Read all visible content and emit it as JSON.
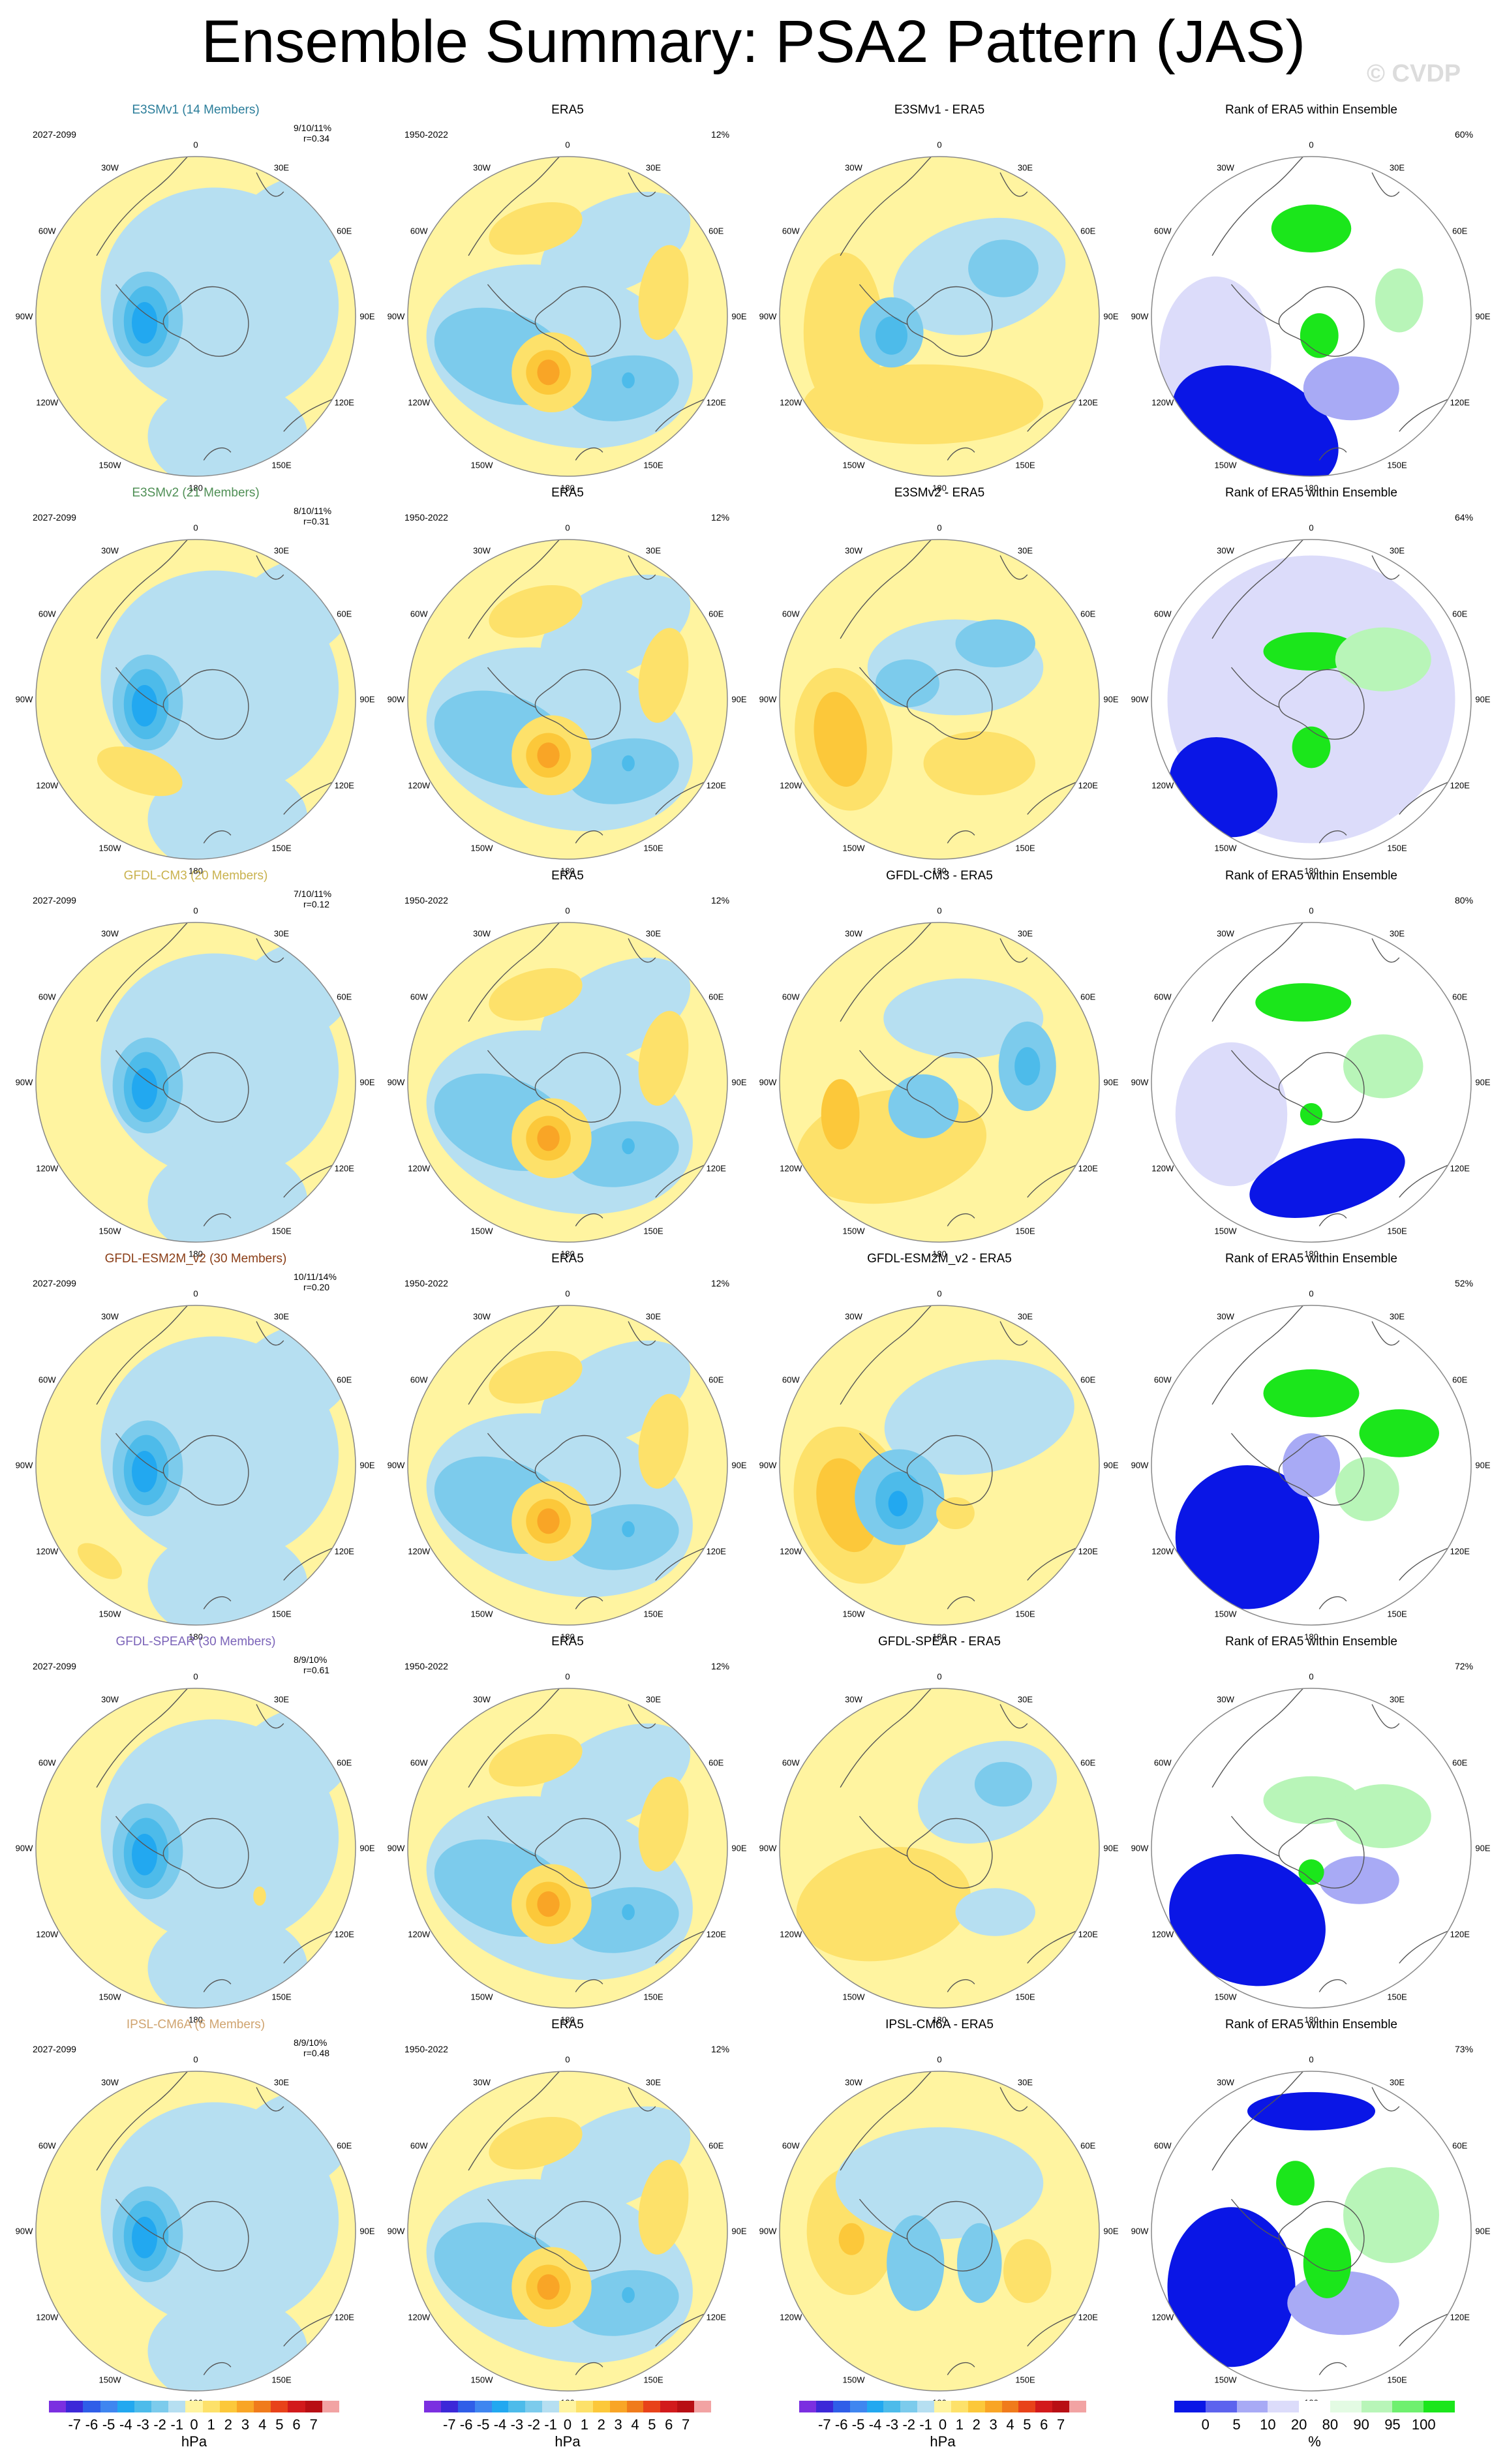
{
  "title": "Ensemble Summary: PSA2 Pattern (JAS)",
  "watermark": "© CVDP",
  "chart_data": {
    "type": "heatmap",
    "description_grid": "6 rows (models) x 4 columns of south-polar stereographic maps",
    "column_titles": [
      "",
      "ERA5",
      "",
      "Rank of ERA5 within Ensemble"
    ],
    "longitude_labels": [
      "0",
      "30E",
      "60E",
      "90E",
      "120E",
      "150E",
      "180",
      "150W",
      "120W",
      "90W",
      "60W",
      "30W"
    ],
    "rows": [
      {
        "model_title": "E3SMv1 (14 Members)",
        "model_color": "#2a7d9a",
        "model_period": "2027-2099",
        "pct": "9/10/11%",
        "r": "r=0.34",
        "obs_period": "1950-2022",
        "obs_pct": "12%",
        "diff_title": "E3SMv1 - ERA5",
        "rank_pct": "60%"
      },
      {
        "model_title": "E3SMv2 (21 Members)",
        "model_color": "#4f8f55",
        "model_period": "2027-2099",
        "pct": "8/10/11%",
        "r": "r=0.31",
        "obs_period": "1950-2022",
        "obs_pct": "12%",
        "diff_title": "E3SMv2 - ERA5",
        "rank_pct": "64%"
      },
      {
        "model_title": "GFDL-CM3 (20 Members)",
        "model_color": "#c9b24e",
        "model_period": "2027-2099",
        "pct": "7/10/11%",
        "r": "r=0.12",
        "obs_period": "1950-2022",
        "obs_pct": "12%",
        "diff_title": "GFDL-CM3 - ERA5",
        "rank_pct": "80%"
      },
      {
        "model_title": "GFDL-ESM2M_v2 (30 Members)",
        "model_color": "#8a3d16",
        "model_period": "2027-2099",
        "pct": "10/11/14%",
        "r": "r=0.20",
        "obs_period": "1950-2022",
        "obs_pct": "12%",
        "diff_title": "GFDL-ESM2M_v2 - ERA5",
        "rank_pct": "52%"
      },
      {
        "model_title": "GFDL-SPEAR (30 Members)",
        "model_color": "#7b63b8",
        "model_period": "2027-2099",
        "pct": "8/9/10%",
        "r": "r=0.61",
        "obs_period": "1950-2022",
        "obs_pct": "12%",
        "diff_title": "GFDL-SPEAR - ERA5",
        "rank_pct": "72%"
      },
      {
        "model_title": "IPSL-CM6A (6 Members)",
        "model_color": "#d0a470",
        "model_period": "2027-2099",
        "pct": "8/9/10%",
        "r": "r=0.48",
        "obs_period": "1950-2022",
        "obs_pct": "12%",
        "diff_title": "IPSL-CM6A - ERA5",
        "rank_pct": "73%"
      }
    ],
    "colorbar_hpa": {
      "unit": "hPa",
      "ticks": [
        "-7",
        "-6",
        "-5",
        "-4",
        "-3",
        "-2",
        "-1",
        "0",
        "1",
        "2",
        "3",
        "4",
        "5",
        "6",
        "7"
      ],
      "colors": [
        "#7b2fe0",
        "#3c28d8",
        "#2f5ee8",
        "#3f86f0",
        "#22a8f0",
        "#4dbbea",
        "#7ccbec",
        "#b6dff1",
        "#fff4a0",
        "#fde16a",
        "#fcc83a",
        "#f9a526",
        "#f07b1c",
        "#e8421a",
        "#d21a1c",
        "#b80f14",
        "#f2a3a3"
      ]
    },
    "colorbar_rank": {
      "unit": "%",
      "ticks": [
        "0",
        "5",
        "10",
        "20",
        "80",
        "90",
        "95",
        "100"
      ],
      "colors": [
        "#0a16e6",
        "#5d63ee",
        "#a8aaf5",
        "#dcdcfa",
        "#ffffff",
        "#e3fbe3",
        "#b8f5b8",
        "#6ff06f",
        "#1be61b"
      ]
    },
    "field_colors": {
      "light_yellow": "#fff4a0",
      "yellow": "#fde16a",
      "orange": "#fcc83a",
      "deep_orange": "#f9a526",
      "light_blue": "#b6dff1",
      "blue": "#7ccbec",
      "mid_blue": "#4dbbea",
      "deep_blue": "#22a8f0",
      "rank_blue": "#0a16e6",
      "rank_light_blue": "#a8aaf5",
      "rank_pale": "#dcdcfa",
      "rank_green": "#1be61b",
      "rank_light_green": "#b8f5b8"
    }
  }
}
